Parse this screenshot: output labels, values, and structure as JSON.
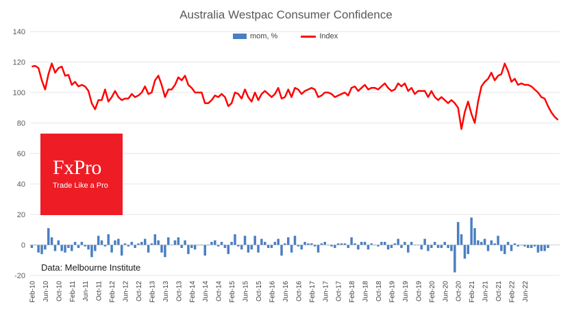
{
  "chart_data": {
    "type": "bar+line",
    "title": "Australia Westpac Consumer Confidence",
    "legend": {
      "bar_label": "mom, %",
      "line_label": "Index",
      "position": "top-center"
    },
    "ylim": [
      -20,
      140
    ],
    "yticks": [
      -20,
      0,
      20,
      40,
      60,
      80,
      100,
      120,
      140
    ],
    "x_tick_labels": [
      "Feb-10",
      "Jun-10",
      "Oct-10",
      "Feb-11",
      "Jun-11",
      "Oct-11",
      "Feb-12",
      "Jun-12",
      "Oct-12",
      "Feb-13",
      "Jun-13",
      "Oct-13",
      "Feb-14",
      "Jun-14",
      "Oct-14",
      "Feb-15",
      "Jun-15",
      "Oct-15",
      "Feb-16",
      "Jun-16",
      "Oct-16",
      "Feb-17",
      "Jun-17",
      "Oct-17",
      "Feb-18",
      "Jun-18",
      "Oct-18",
      "Feb-19",
      "Jun-19",
      "Oct-19",
      "Feb-20",
      "Jun-20",
      "Oct-20",
      "Feb-21",
      "Jun-21",
      "Oct-21",
      "Feb-22",
      "Jun-22"
    ],
    "series": [
      {
        "name": "Index",
        "type": "line",
        "color": "#ff0000",
        "values": [
          117,
          117.5,
          116,
          108,
          102,
          112,
          119,
          113,
          116,
          117,
          111,
          111.5,
          105,
          107,
          104,
          105,
          104,
          101,
          93,
          89,
          95,
          95,
          102,
          94,
          97,
          101,
          97,
          95,
          96,
          96,
          99,
          97,
          98,
          100,
          104,
          99,
          100,
          108,
          111,
          105,
          97,
          102,
          102,
          105,
          110,
          108,
          111,
          105,
          103,
          100,
          100,
          100,
          93,
          93,
          95,
          98,
          97,
          99,
          97,
          91,
          93,
          100,
          99,
          96,
          102,
          97,
          94,
          100,
          95,
          99,
          101,
          99,
          97,
          99,
          103,
          96,
          97,
          102,
          97,
          103,
          102,
          99,
          101,
          102,
          103,
          102,
          97,
          98,
          100,
          100,
          99,
          97,
          98,
          99,
          100,
          98,
          103,
          104,
          101,
          103,
          105,
          102,
          103,
          103,
          102,
          104,
          106,
          103,
          101,
          102,
          106,
          104,
          106,
          101,
          103,
          99,
          101,
          101,
          101,
          97,
          101,
          97,
          95,
          97,
          95,
          93,
          95,
          93,
          90,
          76,
          87,
          94,
          86,
          80,
          94,
          104,
          107,
          109,
          113,
          108,
          111,
          112,
          119,
          114,
          107,
          109,
          105,
          106,
          105,
          105,
          104,
          102,
          100,
          97,
          96,
          91,
          87,
          84,
          82
        ]
      },
      {
        "name": "mom, %",
        "type": "bar",
        "color": "#4a7fc1",
        "values": [
          -2,
          0,
          -5,
          -6,
          -3,
          11,
          5,
          -4,
          3,
          -4,
          -5,
          -2,
          -4,
          2,
          -2,
          2,
          -1,
          -3,
          -8,
          -4,
          6,
          3,
          -1,
          7,
          -5,
          3,
          4,
          -7,
          1,
          -1,
          2,
          -2,
          1,
          2,
          4,
          -5,
          1,
          7,
          3,
          -5,
          -8,
          5,
          0,
          3,
          5,
          -2,
          3,
          -6,
          -2,
          -3,
          0,
          0,
          -7,
          0,
          2,
          3,
          -1,
          2,
          -2,
          -6,
          2,
          7,
          -1,
          -3,
          6,
          -5,
          -3,
          6,
          -5,
          4,
          2,
          -2,
          -2,
          2,
          4,
          -7,
          1,
          5,
          -5,
          6,
          -1,
          -3,
          2,
          1,
          1,
          -1,
          -5,
          1,
          2,
          0,
          -1,
          -2,
          1,
          1,
          1,
          -2,
          5,
          1,
          -3,
          2,
          2,
          -3,
          1,
          0,
          -1,
          2,
          2,
          -3,
          -2,
          1,
          4,
          -2,
          2,
          -5,
          2,
          0,
          0,
          -3,
          4,
          -4,
          -2,
          2,
          -2,
          -2,
          2,
          -2,
          -4,
          -18,
          15,
          7,
          -9,
          -6,
          18,
          11,
          3,
          2,
          4,
          -4,
          3,
          1,
          6,
          -4,
          -6,
          2,
          -4,
          1,
          -1,
          0,
          -1,
          -2,
          -2,
          -1,
          -5,
          -4,
          -4,
          -2
        ]
      }
    ]
  },
  "logo": {
    "name": "FxPro",
    "tagline": "Trade Like a Pro"
  },
  "source_note": "Data: Melbourne Institute"
}
